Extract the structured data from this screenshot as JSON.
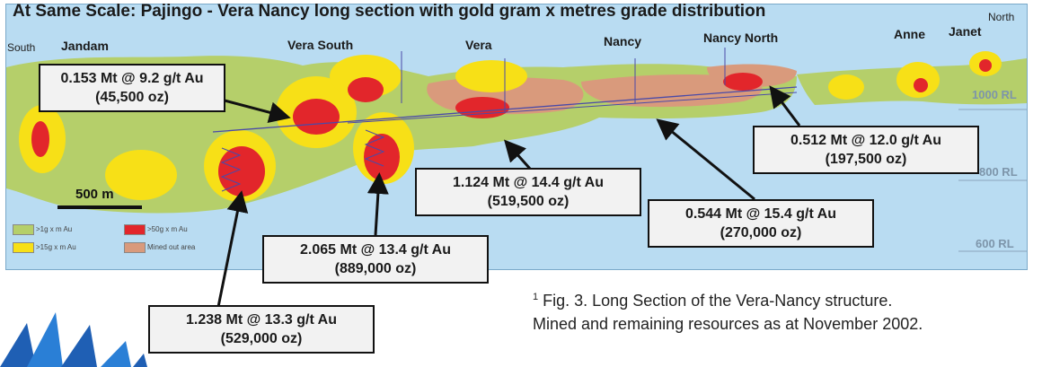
{
  "title": "At Same Scale: Pajingo - Vera Nancy long section with gold gram x metres grade distribution",
  "directions": {
    "south": "South",
    "north": "North"
  },
  "deposits": [
    "Jandam",
    "Vera South",
    "Vera",
    "Nancy",
    "Nancy North",
    "Anne",
    "Janet"
  ],
  "rl_labels": [
    "1000 RL",
    "800 RL",
    "600 RL"
  ],
  "scale_bar": "500 m",
  "legend": [
    {
      "label": ">1g x m Au",
      "color": "#b5cf6a"
    },
    {
      "label": ">50g x m Au",
      "color": "#e2262b"
    },
    {
      "label": ">15g x m Au",
      "color": "#f7e017"
    },
    {
      "label": "Mined out area",
      "color": "#d99a7c"
    }
  ],
  "callouts": [
    {
      "line1": "0.153 Mt @ 9.2 g/t Au",
      "line2": "(45,500 oz)"
    },
    {
      "line1": "1.124 Mt @ 14.4 g/t Au",
      "line2": "(519,500 oz)"
    },
    {
      "line1": "0.512 Mt @ 12.0 g/t Au",
      "line2": "(197,500 oz)"
    },
    {
      "line1": "0.544 Mt @ 15.4 g/t Au",
      "line2": "(270,000 oz)"
    },
    {
      "line1": "2.065 Mt @ 13.4 g/t Au",
      "line2": "(889,000 oz)"
    },
    {
      "line1": "1.238 Mt @ 13.3 g/t Au",
      "line2": "(529,000 oz)"
    }
  ],
  "caption": {
    "marker": "1",
    "line1": "Fig. 3. Long Section of the Vera-Nancy structure.",
    "line2": "Mined and remaining resources as at November 2002."
  },
  "colors": {
    "water": "#b9dcf2",
    "low_grade": "#b5cf6a",
    "mid_grade": "#f7e017",
    "high_grade": "#e2262b",
    "mined": "#d99a7c",
    "logo": "#1f5fb4"
  }
}
